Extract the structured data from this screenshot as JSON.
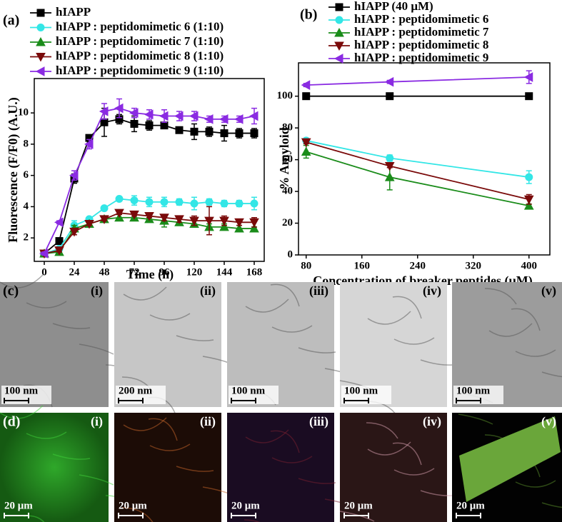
{
  "chart_data": [
    {
      "type": "line",
      "label": "(a)",
      "x_label": "Time (h)",
      "y_label": "Fluorescence (F/F0) (A.U.)",
      "x": [
        0,
        12,
        24,
        36,
        48,
        60,
        72,
        84,
        96,
        108,
        120,
        132,
        144,
        156,
        168
      ],
      "xlim": [
        -8,
        176
      ],
      "xticks": [
        0,
        24,
        48,
        72,
        96,
        120,
        144,
        168
      ],
      "ylim": [
        0.5,
        12.2
      ],
      "yticks": [
        2,
        4,
        6,
        8,
        10
      ],
      "series": [
        {
          "name": "hIAPP",
          "color": "#000000",
          "marker": "square",
          "values": [
            1.0,
            1.8,
            5.8,
            8.4,
            9.4,
            9.6,
            9.3,
            9.2,
            9.2,
            8.9,
            8.8,
            8.8,
            8.7,
            8.7,
            8.7
          ],
          "errors": [
            0.1,
            0.1,
            0.3,
            0.1,
            0.9,
            0.3,
            0.5,
            0.3,
            0.2,
            0.2,
            0.5,
            0.3,
            0.5,
            0.3,
            0.3
          ]
        },
        {
          "name": "hIAPP : peptidomimetic 6 (1:10)",
          "color": "#33e6e6",
          "marker": "circle",
          "values": [
            1.0,
            1.3,
            2.8,
            3.2,
            3.9,
            4.5,
            4.4,
            4.3,
            4.3,
            4.3,
            4.2,
            4.3,
            4.2,
            4.2,
            4.2
          ],
          "errors": [
            0.1,
            0.1,
            0.3,
            0.1,
            0.1,
            0.1,
            0.3,
            0.3,
            0.3,
            0.2,
            0.4,
            0.2,
            0.2,
            0.2,
            0.4
          ]
        },
        {
          "name": "hIAPP : peptidomimetic 7 (1:10)",
          "color": "#1a8c1a",
          "marker": "triangle-up",
          "values": [
            1.0,
            1.1,
            2.6,
            2.9,
            3.2,
            3.3,
            3.3,
            3.2,
            3.1,
            3.0,
            2.9,
            2.7,
            2.7,
            2.6,
            2.6
          ],
          "errors": [
            0.1,
            0.1,
            0.2,
            0.1,
            0.2,
            0.2,
            0.2,
            0.2,
            0.4,
            0.2,
            0.2,
            0.2,
            0.2,
            0.2,
            0.1
          ]
        },
        {
          "name": "hIAPP : peptidomimetic 8 (1:10)",
          "color": "#7a0a0a",
          "marker": "triangle-down",
          "values": [
            1.0,
            1.2,
            2.4,
            2.9,
            3.2,
            3.6,
            3.5,
            3.4,
            3.3,
            3.2,
            3.1,
            3.1,
            3.1,
            3.0,
            3.0
          ],
          "errors": [
            0.1,
            0.1,
            0.2,
            0.1,
            0.1,
            0.1,
            0.1,
            0.1,
            0.2,
            0.2,
            0.3,
            0.9,
            0.3,
            0.2,
            0.3
          ]
        },
        {
          "name": "hIAPP : peptidomimetic 9 (1:10)",
          "color": "#8a2be2",
          "marker": "triangle-left",
          "values": [
            1.0,
            3.0,
            6.0,
            8.0,
            10.1,
            10.3,
            10.0,
            9.9,
            9.8,
            9.8,
            9.8,
            9.6,
            9.6,
            9.6,
            9.8
          ],
          "errors": [
            0.1,
            0.1,
            0.3,
            0.3,
            0.5,
            0.6,
            0.3,
            0.3,
            0.4,
            0.3,
            0.3,
            0.2,
            0.2,
            0.2,
            0.5
          ]
        }
      ]
    },
    {
      "type": "line",
      "label": "(b)",
      "x_label": "Concentration of breaker peptides (μM)",
      "y_label": "% Amyloid",
      "x": [
        80,
        200,
        400
      ],
      "xlim": [
        69,
        430
      ],
      "xticks": [
        80,
        160,
        240,
        320,
        400
      ],
      "ylim": [
        0,
        121
      ],
      "yticks": [
        0,
        20,
        40,
        60,
        80,
        100
      ],
      "series": [
        {
          "name": "hIAPP (40 μM)",
          "color": "#000000",
          "marker": "square",
          "values": [
            100,
            100,
            100
          ],
          "errors": [
            2,
            2,
            2
          ]
        },
        {
          "name": "hIAPP : peptidomimetic 6",
          "color": "#33e6e6",
          "marker": "circle",
          "values": [
            72,
            61,
            49
          ],
          "errors": [
            1,
            2,
            4
          ]
        },
        {
          "name": "hIAPP : peptidomimetic 7",
          "color": "#1a8c1a",
          "marker": "triangle-up",
          "values": [
            65,
            49,
            31
          ],
          "errors": [
            4,
            8,
            1
          ]
        },
        {
          "name": "hIAPP : peptidomimetic 8",
          "color": "#7a0a0a",
          "marker": "triangle-down",
          "values": [
            71,
            56,
            35
          ],
          "errors": [
            1,
            1,
            3
          ]
        },
        {
          "name": "hIAPP : peptidomimetic 9",
          "color": "#8a2be2",
          "marker": "triangle-left",
          "values": [
            107,
            109,
            112
          ],
          "errors": [
            1,
            1,
            4
          ]
        }
      ]
    }
  ],
  "image_rows": [
    {
      "label": "(c)",
      "images": [
        {
          "tag": "(i)",
          "scale": "100 nm"
        },
        {
          "tag": "(ii)",
          "scale": "200 nm"
        },
        {
          "tag": "(iii)",
          "scale": "100 nm"
        },
        {
          "tag": "(iv)",
          "scale": "100 nm"
        },
        {
          "tag": "(v)",
          "scale": "100 nm"
        }
      ]
    },
    {
      "label": "(d)",
      "images": [
        {
          "tag": "(i)",
          "scale": "20 μm"
        },
        {
          "tag": "(ii)",
          "scale": "20 μm"
        },
        {
          "tag": "(iii)",
          "scale": "20 μm"
        },
        {
          "tag": "(iv)",
          "scale": "20 μm"
        },
        {
          "tag": "(v)",
          "scale": "20 μm"
        }
      ]
    }
  ]
}
